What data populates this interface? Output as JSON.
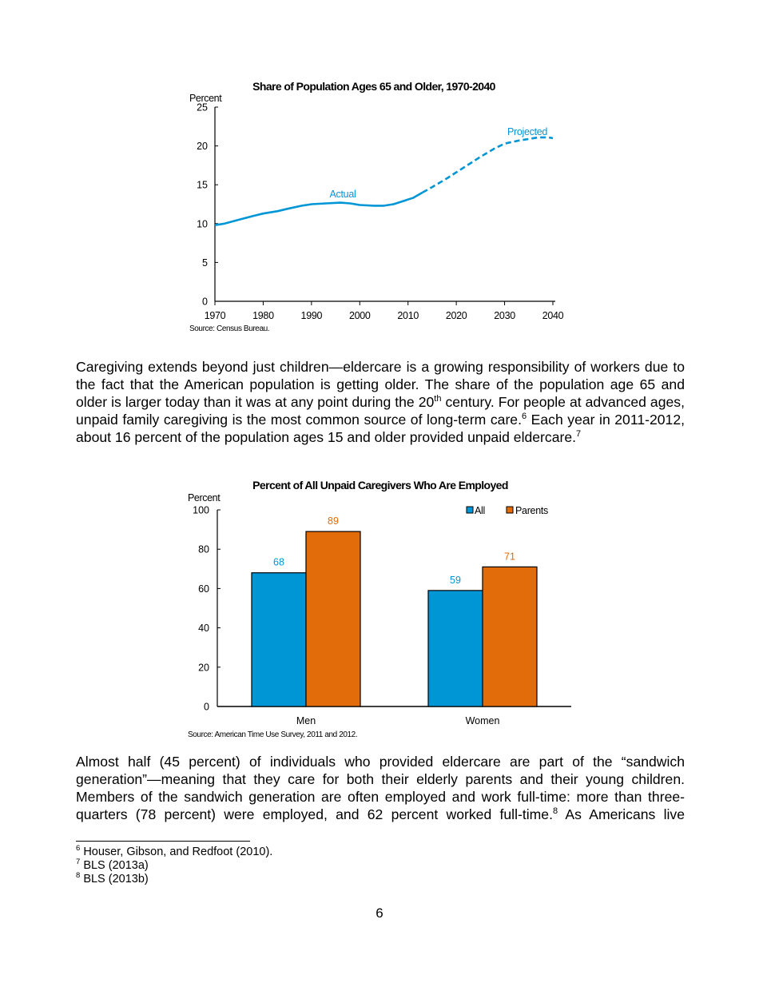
{
  "chart_data": [
    {
      "type": "line",
      "title": "Share of Population Ages 65 and Older, 1970-2040",
      "ylabel": "Percent",
      "xlabel": "",
      "ylim": [
        0,
        25
      ],
      "xlim": [
        1970,
        2040
      ],
      "yticks": [
        "0",
        "5",
        "10",
        "15",
        "20",
        "25"
      ],
      "xticks": [
        "1970",
        "1980",
        "1990",
        "2000",
        "2010",
        "2020",
        "2030",
        "2040"
      ],
      "grid": false,
      "color": "#0096d6",
      "series": [
        {
          "name": "Actual",
          "style": "solid",
          "x": [
            1970,
            1972,
            1975,
            1978,
            1980,
            1983,
            1985,
            1988,
            1990,
            1993,
            1996,
            1998,
            2000,
            2003,
            2005,
            2007,
            2009,
            2011,
            2013
          ],
          "y": [
            9.8,
            10.0,
            10.5,
            11.0,
            11.3,
            11.6,
            11.9,
            12.3,
            12.5,
            12.6,
            12.7,
            12.6,
            12.4,
            12.3,
            12.3,
            12.5,
            12.9,
            13.3,
            14.0
          ]
        },
        {
          "name": "Projected",
          "style": "dashed",
          "x": [
            2013,
            2015,
            2018,
            2020,
            2023,
            2025,
            2028,
            2030,
            2033,
            2035,
            2037,
            2039,
            2040
          ],
          "y": [
            14.0,
            14.7,
            15.8,
            16.6,
            17.8,
            18.6,
            19.7,
            20.3,
            20.7,
            20.9,
            21.1,
            21.1,
            21.0
          ]
        }
      ],
      "annotations": [
        "Actual",
        "Projected"
      ],
      "source": "Source: Census Bureau."
    },
    {
      "type": "bar",
      "title": "Percent of All Unpaid Caregivers Who Are Employed",
      "ylabel": "Percent",
      "xlabel": "",
      "ylim": [
        0,
        100
      ],
      "yticks": [
        "0",
        "20",
        "40",
        "60",
        "80",
        "100"
      ],
      "categories": [
        "Men",
        "Women"
      ],
      "series": [
        {
          "name": "All",
          "color": "#0096d6",
          "values": [
            68,
            59
          ],
          "labels": [
            "68",
            "59"
          ]
        },
        {
          "name": "Parents",
          "color": "#e36c0a",
          "values": [
            89,
            71
          ],
          "labels": [
            "89",
            "71"
          ]
        }
      ],
      "legend": "top-right",
      "grid": false,
      "source": "Source: American Time Use Survey, 2011 and 2012."
    }
  ],
  "body": {
    "para1": {
      "a": "Caregiving extends beyond just children—eldercare is a growing responsibility of workers due to the fact that the American population is getting older. The share of the population age 65 and older is larger today than it was at any point during the 20",
      "sup_th": "th",
      "b": " century. For people at advanced ages, unpaid family caregiving is the most common source of long-term care.",
      "fn6": "6",
      "c": " Each year in 2011-2012, about 16 percent of the population ages 15 and older provided unpaid eldercare.",
      "fn7": "7"
    },
    "para2": {
      "a": "Almost half (45 percent) of individuals who provided eldercare are part of the “sandwich generation”—meaning that they care for both their elderly parents and their young children. Members of the sandwich generation are often employed and work full-time: more than three-quarters (78 percent) were employed, and 62 percent worked full-time.",
      "fn8": "8",
      "b": " As Americans live"
    }
  },
  "footnotes": [
    {
      "num": "6",
      "text": " Houser, Gibson, and Redfoot (2010)."
    },
    {
      "num": "7",
      "text": " BLS (2013a)"
    },
    {
      "num": "8",
      "text": " BLS (2013b)"
    }
  ],
  "page_number": "6"
}
